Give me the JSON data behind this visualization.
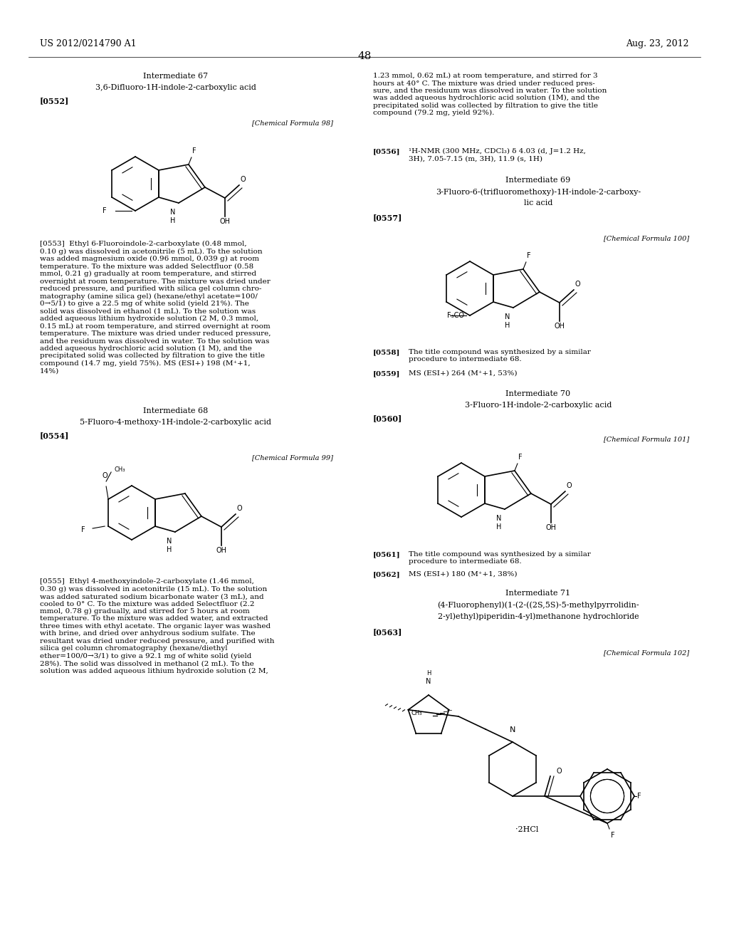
{
  "background_color": "#ffffff",
  "page_number": "48",
  "header_left": "US 2012/0214790 A1",
  "header_right": "Aug. 23, 2012"
}
